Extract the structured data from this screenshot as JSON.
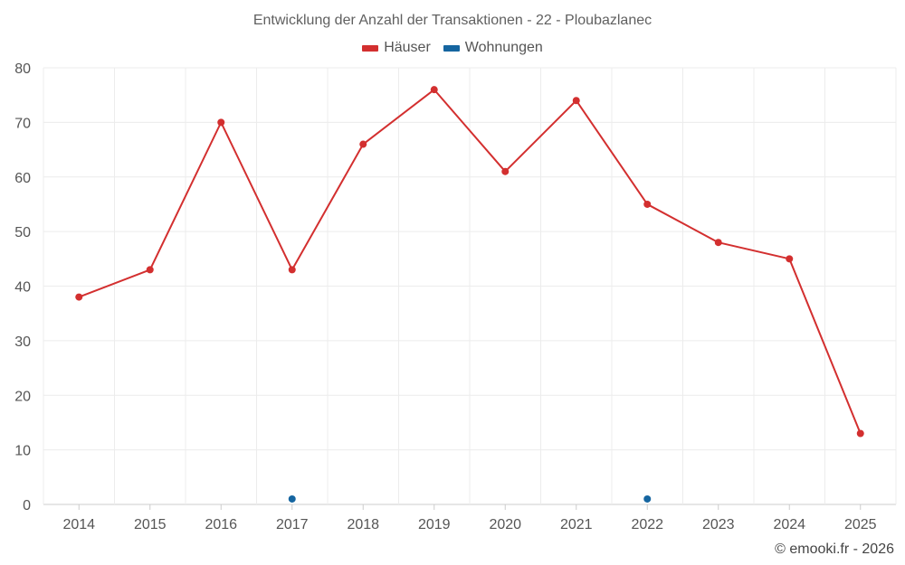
{
  "chart_data": {
    "type": "line",
    "title": "Entwicklung der Anzahl der Transaktionen - 22 - Ploubazlanec",
    "xlabel": "",
    "ylabel": "",
    "categories": [
      "2014",
      "2015",
      "2016",
      "2017",
      "2018",
      "2019",
      "2020",
      "2021",
      "2022",
      "2023",
      "2024",
      "2025"
    ],
    "y_ticks": [
      0,
      10,
      20,
      30,
      40,
      50,
      60,
      70,
      80
    ],
    "ylim": [
      0,
      80
    ],
    "grid": true,
    "legend_position": "top-center",
    "series": [
      {
        "name": "Häuser",
        "color": "#d32f2f",
        "values": [
          38,
          43,
          70,
          43,
          66,
          76,
          61,
          74,
          55,
          48,
          45,
          13
        ],
        "line": true
      },
      {
        "name": "Wohnungen",
        "color": "#1565a0",
        "values": [
          null,
          null,
          null,
          1,
          null,
          null,
          null,
          null,
          1,
          null,
          null,
          null
        ],
        "line": false
      }
    ]
  },
  "footer": {
    "credit": "© emooki.fr - 2026"
  }
}
